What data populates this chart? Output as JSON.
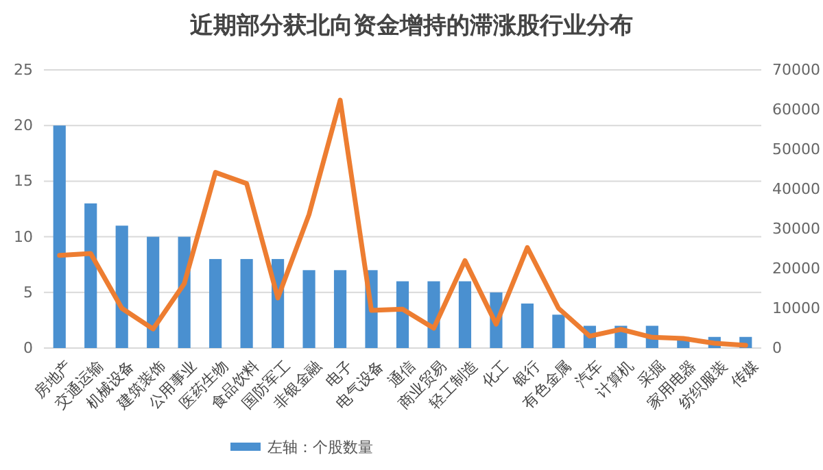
{
  "chart_data": {
    "type": "bar",
    "title": "近期部分获北向资金增持的滞涨股行业分布",
    "categories": [
      "房地产",
      "交通运输",
      "机械设备",
      "建筑装饰",
      "公用事业",
      "医药生物",
      "食品饮料",
      "国防军工",
      "非银金融",
      "电子",
      "电气设备",
      "通信",
      "商业贸易",
      "轻工制造",
      "化工",
      "银行",
      "有色金属",
      "汽车",
      "计算机",
      "采掘",
      "家用电器",
      "纺织服装",
      "传媒"
    ],
    "series": [
      {
        "name": "左轴：个股数量",
        "color": "#4a90d0",
        "values": [
          20,
          13,
          11,
          10,
          10,
          8,
          8,
          8,
          7,
          7,
          7,
          6,
          6,
          6,
          5,
          4,
          3,
          2,
          2,
          2,
          1,
          1,
          1
        ]
      },
      {
        "type": "line",
        "axis": "y2",
        "color": "#ed7d31",
        "values": [
          23300,
          23800,
          10000,
          4800,
          16200,
          44200,
          41400,
          12600,
          33600,
          62400,
          9500,
          9800,
          5000,
          22000,
          6000,
          25300,
          10000,
          3000,
          4700,
          2700,
          2400,
          1200,
          700
        ]
      }
    ],
    "ylim": [
      0,
      25
    ],
    "yticks": [
      0,
      5,
      10,
      15,
      20,
      25
    ],
    "y2lim": [
      0,
      70000
    ],
    "y2ticks": [
      0,
      10000,
      20000,
      30000,
      40000,
      50000,
      60000,
      70000
    ],
    "grid": "y",
    "legend": "bottom"
  }
}
